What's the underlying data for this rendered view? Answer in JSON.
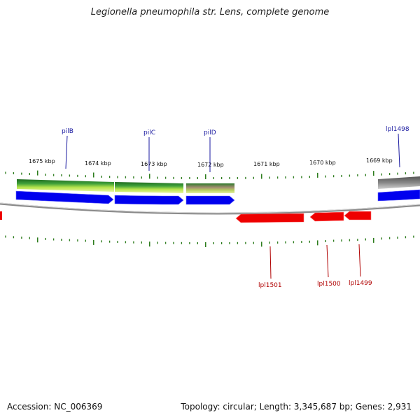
{
  "title": "Legionella pneumophila str. Lens, complete genome",
  "footer": {
    "accession": "Accession: NC_006369",
    "summary": "Topology: circular; Length: 3,345,687 bp; Genes: 2,931"
  },
  "colors": {
    "forward_gene": "#0000ee",
    "reverse_gene": "#ee0000",
    "forward_label": "#1a1aa0",
    "reverse_label": "#b00000",
    "tick": "#2e7d1e",
    "backbone": "#8a8a8a"
  },
  "scale": {
    "unit": "kbp",
    "labels": [
      "1675 kbp",
      "1674 kbp",
      "1673 kbp",
      "1672 kbp",
      "1671 kbp",
      "1670 kbp",
      "1669 kbp"
    ]
  },
  "genes": {
    "forward": [
      {
        "label": "pilB"
      },
      {
        "label": "pilC"
      },
      {
        "label": "pilD"
      },
      {
        "label": "lpl1498"
      }
    ],
    "reverse": [
      {
        "label": "lpl1501"
      },
      {
        "label": "lpl1500"
      },
      {
        "label": "lpl1499"
      }
    ]
  }
}
